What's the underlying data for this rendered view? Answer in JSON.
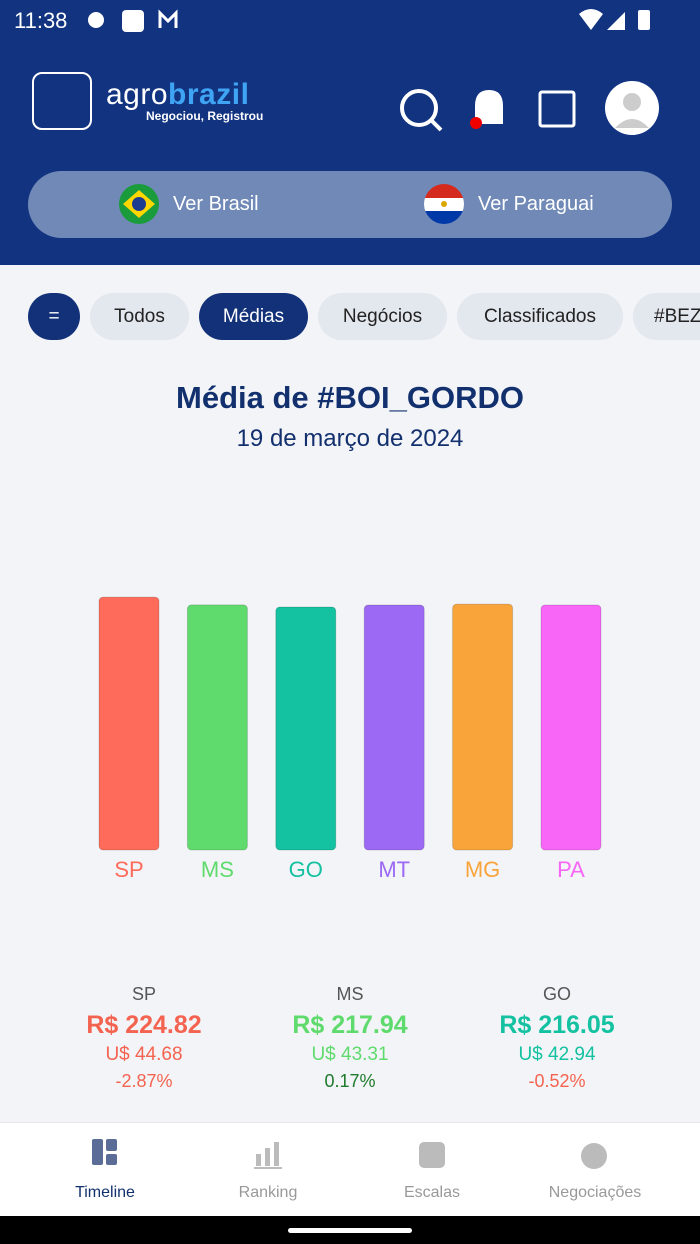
{
  "status_bar": {
    "time": "11:38"
  },
  "header": {
    "logo_part_1": "agro",
    "logo_part_2": "brazil",
    "tagline": "Negociou, Registrou"
  },
  "region_toggle": [
    "Ver Brasil",
    "Ver Paraguai"
  ],
  "filters": [
    "=",
    "Todos",
    "Médias",
    "Negócios",
    "Classificados",
    "#BEZ"
  ],
  "chart_data": {
    "type": "bar",
    "title": "Média de #BOI_GORDO",
    "subtitle": "19 de março de 2024",
    "categories": [
      "SP",
      "MS",
      "GO",
      "MT",
      "MG",
      "PA"
    ],
    "values": [
      224.82,
      217.94,
      216.05,
      217.8,
      218.6,
      217.8
    ],
    "colors": [
      "#fe6b5a",
      "#5fdb6d",
      "#14c1a0",
      "#9b69f4",
      "#f8a43b",
      "#f766f6"
    ]
  },
  "cards": [
    {
      "state": "SP",
      "price": "R$ 224.82",
      "usd": "U$ 44.68",
      "change": "-2.87%"
    },
    {
      "state": "MS",
      "price": "R$ 217.94",
      "usd": "U$ 43.31",
      "change": "0.17%"
    },
    {
      "state": "GO",
      "price": "R$ 216.05",
      "usd": "U$ 42.94",
      "change": "-0.52%"
    }
  ],
  "bottom_nav": [
    "Timeline",
    "Ranking",
    "Escalas",
    "Negociações"
  ]
}
